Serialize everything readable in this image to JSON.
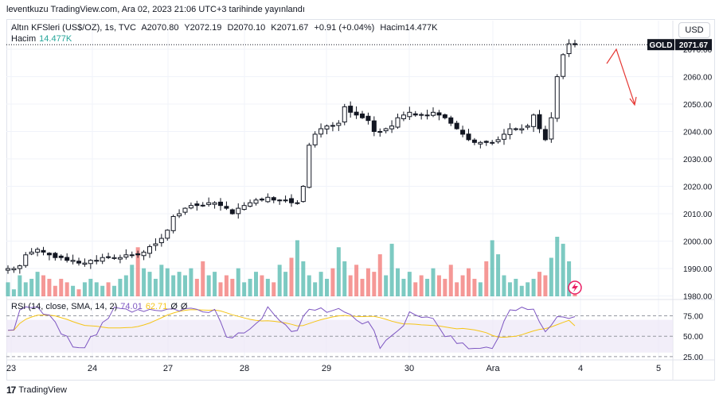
{
  "caption": "leventkuzu TradingView.com, Ara 02, 2023 21:06 UTC+3 tarihinde yayınlandı",
  "legend": {
    "symbol": "Altın KFSleri (US$/OZ), 1s, TVC",
    "open": "A2070.80",
    "high": "Y2072.19",
    "low": "D2070.10",
    "close": "K2071.67",
    "change": "+0.91 (+0.04%)",
    "volume": "Hacim14.477K",
    "volume_label": "Hacim",
    "volume_value": "14.477K"
  },
  "currency_button": "USD",
  "price_tag": {
    "symbol": "GOLD",
    "value": "2071.67"
  },
  "rsi_legend": {
    "label": "RSI (14, close, SMA, 14, 2)",
    "rsi_value": "74.01",
    "sma_value": "62.71",
    "extra_value": "Ø",
    "extra_value2": "Ø"
  },
  "footer": {
    "logo": "17",
    "brand": "TradingView"
  },
  "colors": {
    "up": "#26a69a",
    "down": "#ef5350",
    "candle": "#131722",
    "rsi": "#7e57c2",
    "rsi_sma": "#f5c518",
    "band": "#ede7f6",
    "arrow": "#e53935"
  },
  "chart_data": [
    {
      "type": "candlestick",
      "title": "Altın KFSleri (US$/OZ), 1s, TVC",
      "x_ticks": [
        "23",
        "24",
        "27",
        "28",
        "29",
        "30",
        "Ara",
        "4",
        "5"
      ],
      "y_ticks": [
        1980,
        1990,
        2000,
        2010,
        2020,
        2030,
        2040,
        2050,
        2060,
        2070
      ],
      "ylim": [
        1979,
        2081
      ],
      "last_price": 2071.67,
      "close_path": [
        1990,
        1990,
        1991,
        1995,
        1996,
        1997,
        1996,
        1995,
        1994,
        1994,
        1993,
        1993,
        1992,
        1992,
        1993,
        1993,
        1994,
        1994,
        1994,
        1994,
        1995,
        1995,
        1995,
        1996,
        1998,
        1999,
        2001,
        2004,
        2009,
        2010,
        2012,
        2013,
        2013,
        2013,
        2014,
        2014,
        2013,
        2012,
        2010,
        2012,
        2013,
        2014,
        2015,
        2015,
        2016,
        2015,
        2015,
        2015,
        2014,
        2014,
        2020,
        2035,
        2039,
        2041,
        2042,
        2042,
        2043,
        2049,
        2047,
        2046,
        2045,
        2044,
        2040,
        2040,
        2041,
        2042,
        2045,
        2046,
        2047,
        2046,
        2046,
        2046,
        2047,
        2046,
        2045,
        2043,
        2041,
        2039,
        2037,
        2036,
        2036,
        2036,
        2036,
        2037,
        2039,
        2041,
        2041,
        2041,
        2042,
        2046,
        2041,
        2037,
        2045,
        2060,
        2068,
        2072,
        2071.67
      ],
      "volume": [
        4,
        2,
        6,
        4,
        5,
        7,
        6,
        5,
        3,
        5,
        4,
        3,
        2,
        4,
        5,
        4,
        3,
        4,
        3,
        5,
        6,
        9,
        14,
        8,
        7,
        5,
        9,
        8,
        6,
        7,
        6,
        8,
        5,
        10,
        6,
        7,
        4,
        6,
        5,
        8,
        4,
        5,
        7,
        6,
        5,
        4,
        9,
        7,
        11,
        16,
        10,
        6,
        4,
        7,
        5,
        8,
        14,
        10,
        6,
        9,
        5,
        8,
        7,
        12,
        6,
        15,
        8,
        5,
        7,
        4,
        6,
        5,
        8,
        6,
        5,
        9,
        4,
        6,
        8,
        5,
        4,
        10,
        16,
        12,
        6,
        4,
        5,
        3,
        4,
        5,
        7,
        6,
        11,
        17,
        15,
        10,
        4
      ]
    },
    {
      "type": "line",
      "title": "RSI (14, close, SMA, 14, 2)",
      "y_ticks": [
        25.0,
        50.0,
        75.0
      ],
      "ylim": [
        22,
        92
      ],
      "band": [
        30,
        70
      ],
      "series": [
        {
          "name": "RSI",
          "last": 74.01
        },
        {
          "name": "SMA",
          "last": 62.71
        }
      ]
    }
  ]
}
